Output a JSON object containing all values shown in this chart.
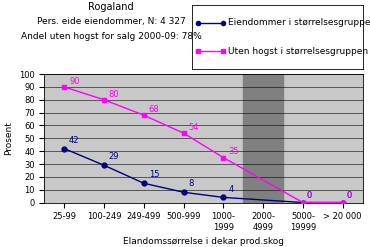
{
  "title": "Rogaland",
  "subtitle1": "Pers. eide eiendommer, N: 4 327",
  "subtitle2": "Andel uten hogst for salg 2000-09: 78%",
  "categories": [
    "25-99",
    "100-249",
    "249-499",
    "500-999",
    "1000-\n1999",
    "2000-\n4999",
    "5000-\n19999",
    "> 20 000"
  ],
  "blue_values": [
    42,
    29,
    15,
    8,
    4,
    null,
    0,
    0
  ],
  "pink_values": [
    90,
    80,
    68,
    54,
    35,
    null,
    0,
    0
  ],
  "blue_labels": [
    "42",
    "29",
    "15",
    "8",
    "4",
    "",
    "0",
    "0"
  ],
  "pink_labels": [
    "90",
    "80",
    "68",
    "54",
    "35",
    "",
    "0",
    "0"
  ],
  "shaded_region_index": 5,
  "xlabel": "Elandomssørrelse i dekar prod.skog",
  "ylabel": "Prosent",
  "ylim": [
    0,
    100
  ],
  "legend_blue": "Eiendommer i størrelsesgruppen av alle",
  "legend_pink": "Uten hogst i størrelsesgruppen",
  "blue_color": "#000080",
  "pink_color": "#FF00FF",
  "background_plot": "#C8C8C8",
  "background_fig": "#FFFFFF",
  "shaded_color": "#808080",
  "title_fontsize": 7,
  "label_fontsize": 6.5,
  "tick_fontsize": 6,
  "legend_fontsize": 6.5,
  "data_label_fontsize": 6
}
